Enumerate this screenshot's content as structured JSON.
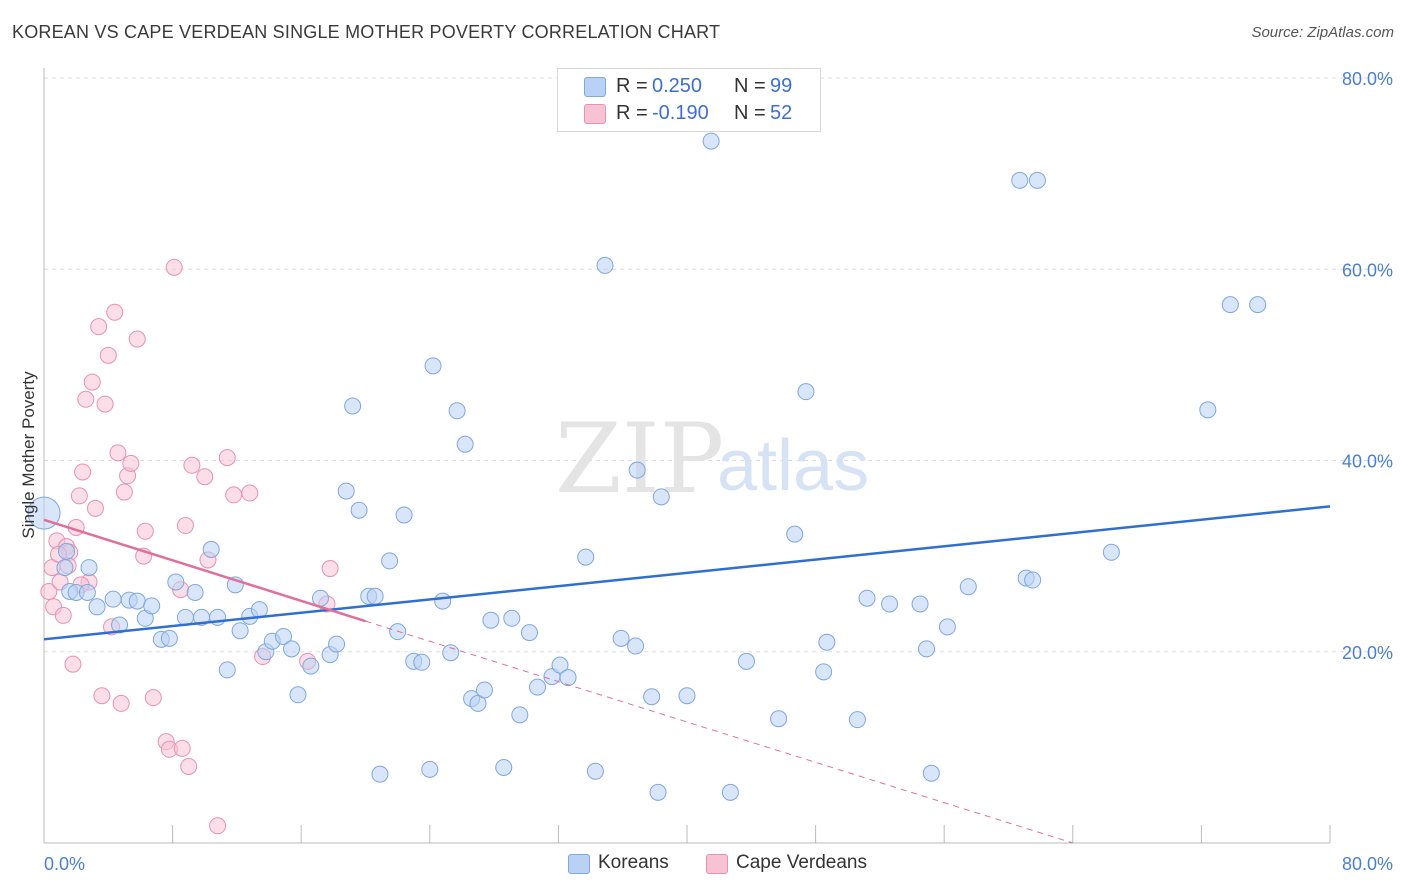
{
  "title": "KOREAN VS CAPE VERDEAN SINGLE MOTHER POVERTY CORRELATION CHART",
  "source": "Source: ZipAtlas.com",
  "watermark": {
    "zip": "ZIP",
    "atlas": "atlas"
  },
  "colors": {
    "korean_fill": "#b9d1f4",
    "korean_stroke": "#7fa7e0",
    "korean_line": "#2e6fd0",
    "cape_fill": "#f7c2d3",
    "cape_stroke": "#e892b0",
    "cape_line": "#e0709a",
    "tick_label": "#4a7fd0",
    "grid": "#dddddd"
  },
  "legend": {
    "rows": [
      {
        "r_label": "R =",
        "r_value": "0.250",
        "n_label": "N =",
        "n_value": "99"
      },
      {
        "r_label": "R =",
        "r_value": "-0.190",
        "n_label": "N =",
        "n_value": "52"
      }
    ]
  },
  "bottom_legend": {
    "koreans": "Koreans",
    "cape": "Cape Verdeans"
  },
  "chart_data": {
    "type": "scatter",
    "title": "KOREAN VS CAPE VERDEAN SINGLE MOTHER POVERTY CORRELATION CHART",
    "xlabel": "",
    "ylabel": "Single Mother Poverty",
    "xlim": [
      0,
      80
    ],
    "ylim": [
      0,
      80
    ],
    "x_tick_labels": [
      "0.0%",
      "80.0%"
    ],
    "y_tick_labels": [
      "20.0%",
      "40.0%",
      "60.0%",
      "80.0%"
    ],
    "y_ticks": [
      20,
      40,
      60,
      80
    ],
    "legend_position": "top-center",
    "series": [
      {
        "name": "Koreans",
        "r": 0.25,
        "n": 99,
        "trend": [
          [
            0,
            21.3
          ],
          [
            80,
            35.2
          ]
        ],
        "points": [
          [
            0.0,
            34.5
          ],
          [
            1.3,
            28.8
          ],
          [
            1.4,
            30.5
          ],
          [
            1.6,
            26.3
          ],
          [
            2.0,
            26.2
          ],
          [
            2.8,
            28.8
          ],
          [
            2.7,
            26.2
          ],
          [
            3.3,
            24.7
          ],
          [
            4.3,
            25.5
          ],
          [
            4.7,
            22.8
          ],
          [
            5.3,
            25.4
          ],
          [
            5.8,
            25.3
          ],
          [
            6.3,
            23.5
          ],
          [
            6.7,
            24.8
          ],
          [
            7.3,
            21.3
          ],
          [
            7.8,
            21.4
          ],
          [
            8.2,
            27.3
          ],
          [
            8.8,
            23.6
          ],
          [
            9.4,
            26.2
          ],
          [
            9.8,
            23.6
          ],
          [
            10.4,
            30.7
          ],
          [
            10.8,
            23.6
          ],
          [
            11.4,
            18.1
          ],
          [
            11.9,
            27.0
          ],
          [
            12.2,
            22.2
          ],
          [
            12.8,
            23.7
          ],
          [
            13.4,
            24.4
          ],
          [
            13.8,
            20.0
          ],
          [
            14.2,
            21.1
          ],
          [
            14.9,
            21.6
          ],
          [
            15.4,
            20.3
          ],
          [
            15.8,
            15.5
          ],
          [
            16.6,
            18.5
          ],
          [
            17.2,
            25.6
          ],
          [
            17.8,
            19.7
          ],
          [
            18.2,
            20.8
          ],
          [
            18.8,
            36.8
          ],
          [
            19.2,
            45.7
          ],
          [
            19.6,
            34.8
          ],
          [
            20.2,
            25.8
          ],
          [
            20.6,
            25.8
          ],
          [
            20.9,
            7.2
          ],
          [
            21.5,
            29.5
          ],
          [
            22.0,
            22.1
          ],
          [
            22.4,
            34.3
          ],
          [
            23.0,
            19.0
          ],
          [
            23.5,
            18.9
          ],
          [
            24.0,
            7.7
          ],
          [
            24.2,
            49.9
          ],
          [
            24.8,
            25.3
          ],
          [
            25.3,
            19.9
          ],
          [
            25.7,
            45.2
          ],
          [
            26.2,
            41.7
          ],
          [
            26.6,
            15.1
          ],
          [
            27.0,
            14.6
          ],
          [
            27.4,
            16.0
          ],
          [
            27.8,
            23.3
          ],
          [
            28.6,
            7.9
          ],
          [
            29.1,
            23.5
          ],
          [
            29.6,
            13.4
          ],
          [
            30.2,
            22.0
          ],
          [
            30.7,
            16.3
          ],
          [
            31.6,
            17.4
          ],
          [
            32.1,
            18.6
          ],
          [
            32.6,
            17.3
          ],
          [
            33.7,
            29.9
          ],
          [
            34.3,
            7.5
          ],
          [
            34.9,
            60.4
          ],
          [
            35.9,
            21.4
          ],
          [
            36.8,
            20.6
          ],
          [
            36.9,
            39.0
          ],
          [
            37.8,
            15.3
          ],
          [
            38.2,
            5.3
          ],
          [
            38.4,
            36.2
          ],
          [
            40.0,
            15.4
          ],
          [
            41.5,
            73.4
          ],
          [
            42.7,
            5.3
          ],
          [
            43.7,
            19.0
          ],
          [
            45.7,
            13.0
          ],
          [
            46.7,
            32.3
          ],
          [
            47.4,
            47.2
          ],
          [
            48.5,
            17.9
          ],
          [
            48.7,
            21.0
          ],
          [
            50.6,
            12.9
          ],
          [
            51.2,
            25.6
          ],
          [
            52.6,
            25.0
          ],
          [
            54.5,
            25.0
          ],
          [
            54.9,
            20.3
          ],
          [
            55.2,
            7.3
          ],
          [
            56.2,
            22.6
          ],
          [
            57.5,
            26.8
          ],
          [
            60.7,
            69.3
          ],
          [
            61.1,
            27.7
          ],
          [
            61.5,
            27.5
          ],
          [
            61.8,
            69.3
          ],
          [
            66.4,
            30.4
          ],
          [
            72.4,
            45.3
          ],
          [
            73.8,
            56.3
          ],
          [
            75.5,
            56.3
          ]
        ]
      },
      {
        "name": "Cape Verdeans",
        "r": -0.19,
        "n": 52,
        "trend": [
          [
            0,
            33.8
          ],
          [
            20,
            23.2
          ]
        ],
        "trend_extended": [
          [
            20,
            23.2
          ],
          [
            64,
            0
          ]
        ],
        "points": [
          [
            0.3,
            26.3
          ],
          [
            0.5,
            28.8
          ],
          [
            0.6,
            24.7
          ],
          [
            0.8,
            31.6
          ],
          [
            1.0,
            27.3
          ],
          [
            1.2,
            23.8
          ],
          [
            1.4,
            31.0
          ],
          [
            1.6,
            30.4
          ],
          [
            1.8,
            18.7
          ],
          [
            2.0,
            33.0
          ],
          [
            2.2,
            36.3
          ],
          [
            2.4,
            38.8
          ],
          [
            2.6,
            46.4
          ],
          [
            2.8,
            27.3
          ],
          [
            3.0,
            48.2
          ],
          [
            3.2,
            35.0
          ],
          [
            3.4,
            54.0
          ],
          [
            3.6,
            15.4
          ],
          [
            3.8,
            45.9
          ],
          [
            4.0,
            51.0
          ],
          [
            4.2,
            22.6
          ],
          [
            4.4,
            55.5
          ],
          [
            4.6,
            40.8
          ],
          [
            4.8,
            14.6
          ],
          [
            5.0,
            36.7
          ],
          [
            5.2,
            38.4
          ],
          [
            5.4,
            39.7
          ],
          [
            5.8,
            52.7
          ],
          [
            6.2,
            30.0
          ],
          [
            6.3,
            32.6
          ],
          [
            6.8,
            15.2
          ],
          [
            7.6,
            10.6
          ],
          [
            7.8,
            9.8
          ],
          [
            8.1,
            60.2
          ],
          [
            8.5,
            26.5
          ],
          [
            8.6,
            9.9
          ],
          [
            8.8,
            33.2
          ],
          [
            9.0,
            8.0
          ],
          [
            9.2,
            39.5
          ],
          [
            10.0,
            38.3
          ],
          [
            10.2,
            29.6
          ],
          [
            10.8,
            1.8
          ],
          [
            11.4,
            40.3
          ],
          [
            11.8,
            36.4
          ],
          [
            12.8,
            36.6
          ],
          [
            13.6,
            19.5
          ],
          [
            16.4,
            19.0
          ],
          [
            17.6,
            25.0
          ],
          [
            17.8,
            28.7
          ],
          [
            1.5,
            29.0
          ],
          [
            0.9,
            30.2
          ],
          [
            2.3,
            27.0
          ]
        ]
      }
    ]
  }
}
